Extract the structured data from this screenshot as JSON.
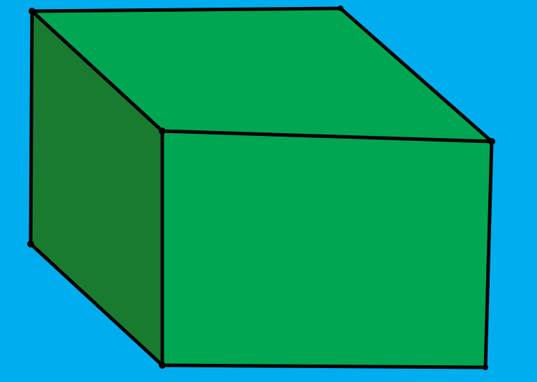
{
  "colors": {
    "background": "#00AEEF",
    "top_face": "#00A651",
    "front_face": "#00A651",
    "side_face": "#197B30",
    "edge": "#000000"
  },
  "shape": {
    "kind": "cube",
    "faces": [
      "top-face",
      "left-side-face",
      "front-face"
    ]
  }
}
